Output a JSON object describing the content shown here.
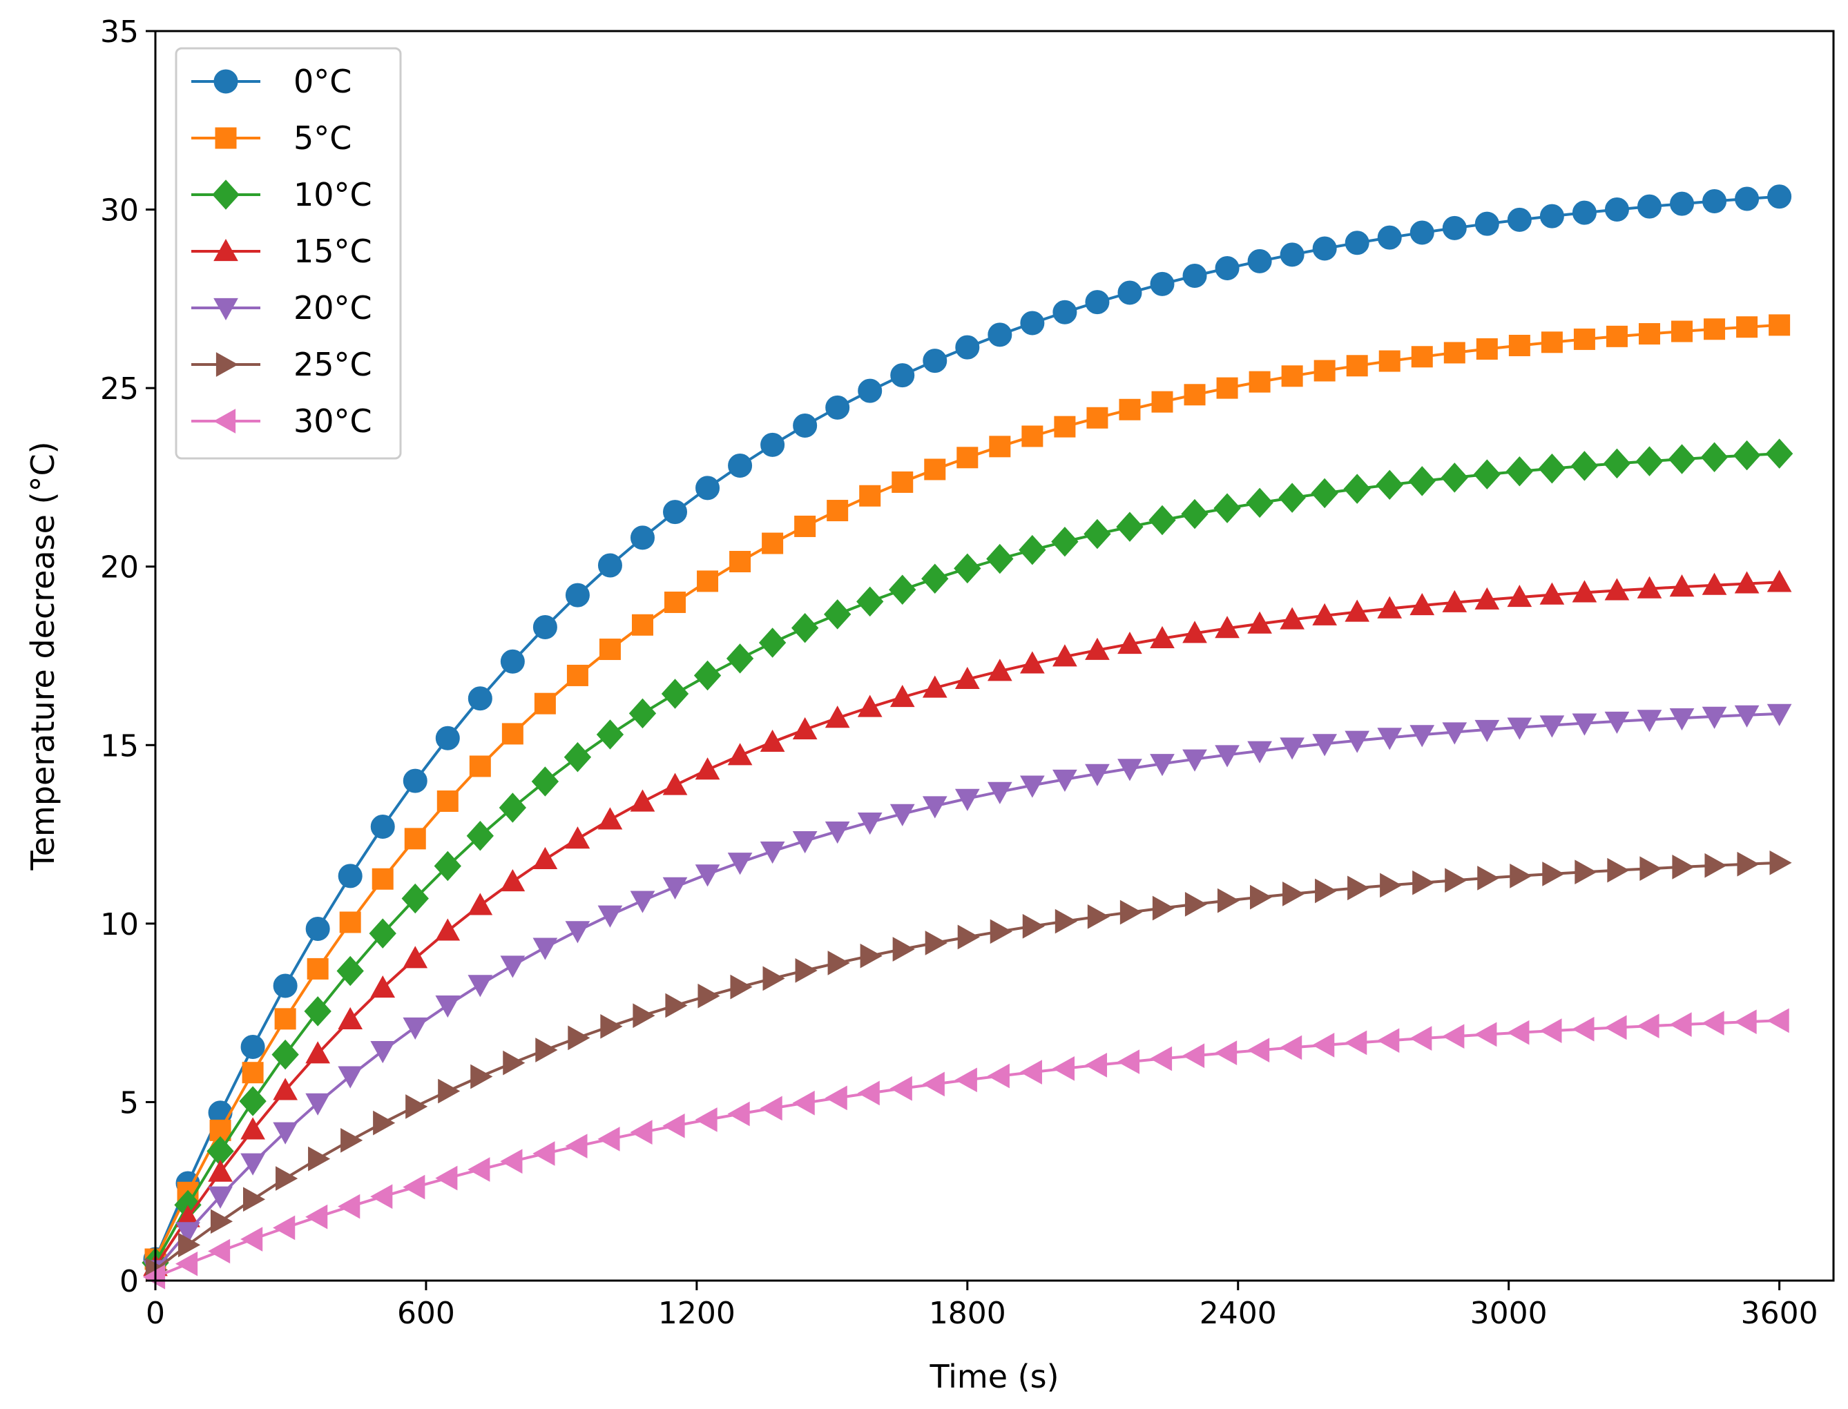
{
  "chart_data": {
    "type": "line",
    "title": "",
    "xlabel": "Time (s)",
    "ylabel": "Temperature decrease (°C)",
    "xlim": [
      0,
      3720
    ],
    "ylim": [
      0,
      35
    ],
    "xticks": [
      0,
      600,
      1200,
      1800,
      2400,
      3000,
      3600
    ],
    "xtick_labels": [
      "0",
      "600",
      "1200",
      "1800",
      "2400",
      "3000",
      "3600"
    ],
    "yticks": [
      0,
      5,
      10,
      15,
      20,
      25,
      30,
      35
    ],
    "ytick_labels": [
      "0",
      "5",
      "10",
      "15",
      "20",
      "25",
      "30",
      "35"
    ],
    "grid": false,
    "legend_position": "top-left",
    "x_start": 0,
    "x_step": 72,
    "n_points": 51,
    "series": [
      {
        "name": "0°C",
        "color": "#1f77b4",
        "marker": "circle",
        "v0": 0.6,
        "vmax": 31.2,
        "tau": 1000
      },
      {
        "name": "5°C",
        "color": "#ff7f0e",
        "marker": "square",
        "v0": 0.6,
        "vmax": 27.5,
        "tau": 1000
      },
      {
        "name": "10°C",
        "color": "#2ca02c",
        "marker": "diamond",
        "v0": 0.5,
        "vmax": 23.8,
        "tau": 1000
      },
      {
        "name": "15°C",
        "color": "#d62728",
        "marker": "triangle-up",
        "v0": 0.4,
        "vmax": 20.1,
        "tau": 1000
      },
      {
        "name": "20°C",
        "color": "#9467bd",
        "marker": "triangle-down",
        "v0": 0.3,
        "vmax": 16.4,
        "tau": 1050
      },
      {
        "name": "25°C",
        "color": "#8c564b",
        "marker": "triangle-right",
        "v0": 0.3,
        "vmax": 12.3,
        "tau": 1200
      },
      {
        "name": "30°C",
        "color": "#e377c2",
        "marker": "triangle-left",
        "v0": 0.1,
        "vmax": 8.0,
        "tau": 1500
      }
    ]
  }
}
